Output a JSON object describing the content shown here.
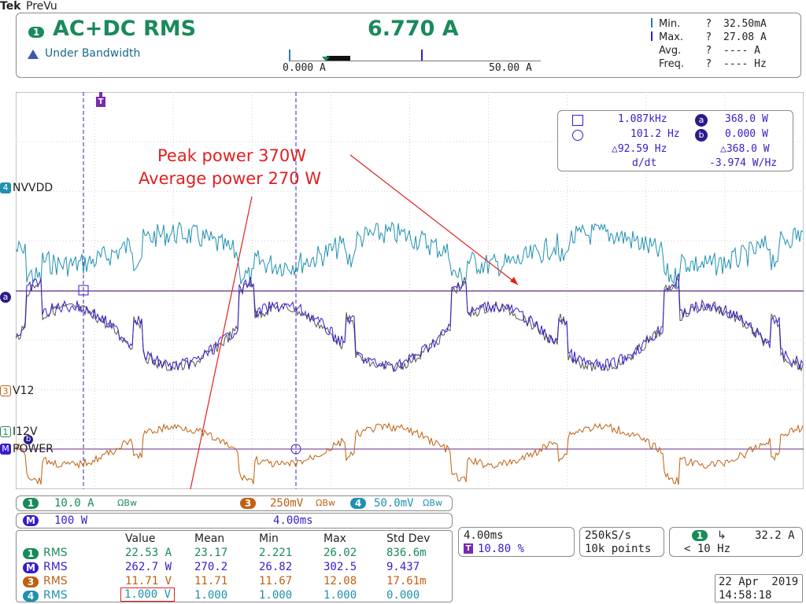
{
  "brand": {
    "logo": "Tek",
    "mode": "PreVu"
  },
  "top": {
    "channel": "1",
    "measurement": "AC+DC RMS",
    "value": "6.770 A",
    "status": "Under Bandwidth",
    "range_min": "0.000 A",
    "range_max": "50.00 A",
    "stats": [
      {
        "label": "Min.",
        "q": "?",
        "value": "32.50mA"
      },
      {
        "label": "Max.",
        "q": "?",
        "value": "27.08 A"
      },
      {
        "label": "Avg.",
        "q": "?",
        "value": "---- A"
      },
      {
        "label": "Freq.",
        "q": "?",
        "value": "---- Hz"
      }
    ]
  },
  "cursors": {
    "sq_label": "1.087kHz",
    "a_label": "a",
    "a_value": "368.0 W",
    "circ_label": "101.2 Hz",
    "b_label": "b",
    "b_value": "0.000 W",
    "delta_freq": "△92.59 Hz",
    "delta_power": "△368.0 W",
    "d_dt_label": "d/dt",
    "d_dt_value": "-3.974 W/Hz"
  },
  "annotation": {
    "line1": "Peak power 370W",
    "line2": "Average power 270 W"
  },
  "traces": {
    "ch4": {
      "num": "4",
      "name": "NVVDD"
    },
    "ch3": {
      "num": "3",
      "name": "V12"
    },
    "ch1": {
      "num": "1",
      "name": "I12V"
    },
    "math": {
      "num": "M",
      "name": "POWER"
    },
    "cursor_a": "a",
    "cursor_b": "b",
    "trigger": "T"
  },
  "scales": {
    "ch1_num": "1",
    "ch1": "10.0 A",
    "ch3_num": "3",
    "ch3": "250mV",
    "ch4_num": "4",
    "ch4": "50.0mV",
    "bw": "ΩBw",
    "math_num": "M",
    "math": "100 W",
    "time": "4.00ms"
  },
  "measurements": {
    "headers": [
      "Value",
      "Mean",
      "Min",
      "Max",
      "Std Dev"
    ],
    "rows": [
      {
        "num": "1",
        "type": "RMS",
        "cells": [
          "22.53 A",
          "23.17",
          "2.221",
          "26.02",
          "836.6m"
        ]
      },
      {
        "num": "M",
        "type": "RMS",
        "cells": [
          "262.7 W",
          "270.2",
          "26.82",
          "302.5",
          "9.437"
        ]
      },
      {
        "num": "3",
        "type": "RMS",
        "cells": [
          "11.71 V",
          "11.71",
          "11.67",
          "12.08",
          "17.61m"
        ]
      },
      {
        "num": "4",
        "type": "RMS",
        "cells": [
          "1.000 V",
          "1.000",
          "1.000",
          "1.000",
          "0.000"
        ]
      }
    ]
  },
  "horizontal": {
    "scale": "4.00ms",
    "trig_label": "T",
    "trig_pos": "10.80 %"
  },
  "acq": {
    "rate": "250kS/s",
    "points": "10k points"
  },
  "trigger": {
    "num": "1",
    "slope": "↳",
    "level": "32.2 A",
    "freq": "< 10 Hz"
  },
  "datetime": {
    "date": "22 Apr  2019",
    "time": "14:58:18"
  },
  "colors": {
    "ch1": "#1a8a5a",
    "math": "#3a1cc9",
    "ch3": "#c06010",
    "ch4": "#1f90b0",
    "annotation": "#e02020"
  }
}
